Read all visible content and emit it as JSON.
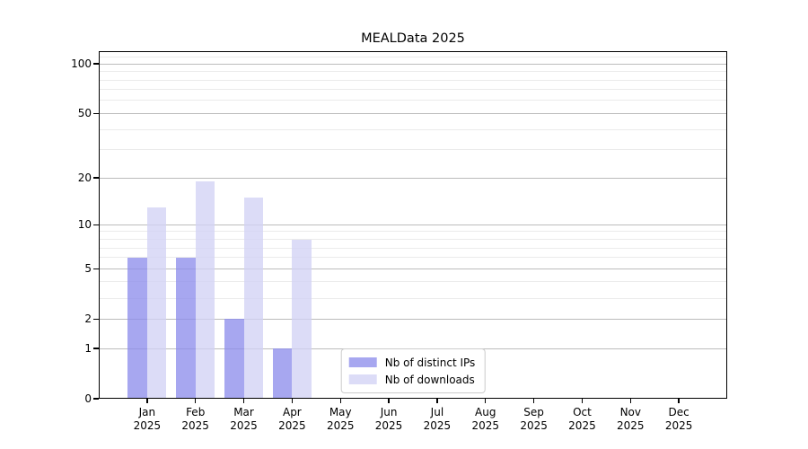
{
  "title": "MEALData 2025",
  "chart_data": {
    "type": "bar",
    "title": "MEALData 2025",
    "year_label": "2025",
    "categories": [
      "Jan",
      "Feb",
      "Mar",
      "Apr",
      "May",
      "Jun",
      "Jul",
      "Aug",
      "Sep",
      "Oct",
      "Nov",
      "Dec"
    ],
    "series": [
      {
        "name": "Nb of distinct IPs",
        "color": "#8e8eec",
        "alpha": 0.78,
        "values": [
          6,
          6,
          2,
          1,
          0,
          0,
          0,
          0,
          0,
          0,
          0,
          0
        ]
      },
      {
        "name": "Nb of downloads",
        "color": "#d2d2f5",
        "alpha": 0.78,
        "values": [
          13,
          19,
          15,
          8,
          0,
          0,
          0,
          0,
          0,
          0,
          0,
          0
        ]
      }
    ],
    "yscale": "log1p",
    "ylim": [
      0,
      119.4
    ],
    "yticks": [
      0,
      1,
      2,
      5,
      10,
      20,
      50,
      100
    ],
    "yticks_minor": [
      3,
      4,
      6,
      7,
      8,
      9,
      30,
      40,
      60,
      70,
      80,
      90,
      110
    ],
    "grid": true,
    "legend_position": "lower center",
    "frame_color": "#000000",
    "grid_major_color": "#bcbcbc",
    "grid_minor_color": "#ebebeb"
  }
}
